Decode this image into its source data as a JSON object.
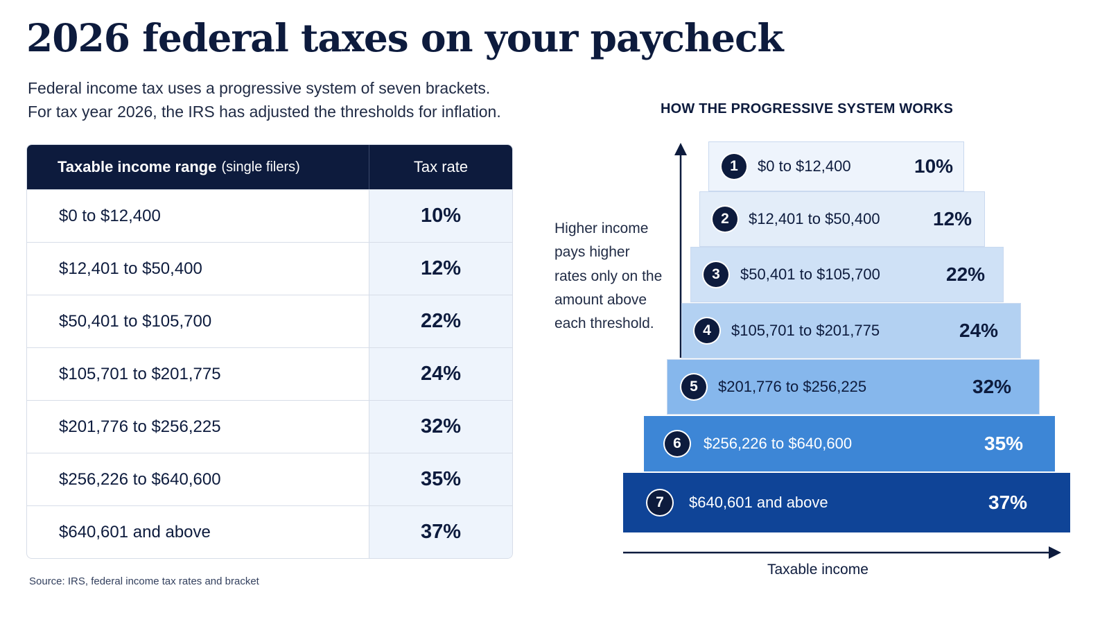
{
  "title": "2026 federal taxes on your paycheck",
  "subtitle": {
    "line1": "Federal income tax uses a progressive system of seven brackets.",
    "line2": "For tax year 2026, the IRS has adjusted the thresholds for inflation."
  },
  "table": {
    "header_range": "Taxable income range",
    "header_range_sub": "(single filers)",
    "header_rate": "Tax rate",
    "rows": [
      {
        "range": "$0 to $12,400",
        "rate": "10%"
      },
      {
        "range": "$12,401 to $50,400",
        "rate": "12%"
      },
      {
        "range": "$50,401 to $105,700",
        "rate": "22%"
      },
      {
        "range": "$105,701 to $201,775",
        "rate": "24%"
      },
      {
        "range": "$201,776 to $256,225",
        "rate": "32%"
      },
      {
        "range": "$256,226 to $640,600",
        "rate": "35%"
      },
      {
        "range": "$640,601 and above",
        "rate": "37%"
      }
    ]
  },
  "source": "Source: IRS, federal income tax rates and bracket",
  "diagram": {
    "title": "HOW THE PROGRESSIVE SYSTEM WORKS",
    "note": "Higher income pays higher rates only on the amount above each threshold.",
    "x_axis_label": "Taxable income",
    "steps": [
      {
        "num": "1",
        "range": "$0 to $12,400",
        "rate": "10%",
        "color": "#eef4fc"
      },
      {
        "num": "2",
        "range": "$12,401 to $50,400",
        "rate": "12%",
        "color": "#e3edf9"
      },
      {
        "num": "3",
        "range": "$50,401 to $105,700",
        "rate": "22%",
        "color": "#cfe1f6"
      },
      {
        "num": "4",
        "range": "$105,701 to $201,775",
        "rate": "24%",
        "color": "#b3d1f2"
      },
      {
        "num": "5",
        "range": "$201,776 to $256,225",
        "rate": "32%",
        "color": "#86b7ec"
      },
      {
        "num": "6",
        "range": "$256,226 to $640,600",
        "rate": "35%",
        "color": "#3d86d6"
      },
      {
        "num": "7",
        "range": "$640,601 and above",
        "rate": "37%",
        "color": "#0f4497"
      }
    ]
  },
  "colors": {
    "navy": "#0d1b3d",
    "rate_cell_bg": "#eef4fc"
  }
}
